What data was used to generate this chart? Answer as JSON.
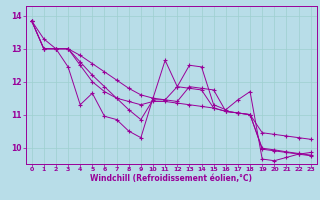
{
  "xlabel": "Windchill (Refroidissement éolien,°C)",
  "background_color": "#b8dde8",
  "line_color": "#990099",
  "grid_color": "#9ecfcf",
  "xlim": [
    -0.5,
    23.5
  ],
  "ylim": [
    9.5,
    14.3
  ],
  "yticks": [
    10,
    11,
    12,
    13,
    14
  ],
  "xticks": [
    0,
    1,
    2,
    3,
    4,
    5,
    6,
    7,
    8,
    9,
    10,
    11,
    12,
    13,
    14,
    15,
    16,
    17,
    18,
    19,
    20,
    21,
    22,
    23
  ],
  "series": [
    [
      13.85,
      13.3,
      13.0,
      12.45,
      11.3,
      11.65,
      10.95,
      10.85,
      10.5,
      10.3,
      11.5,
      12.65,
      11.85,
      12.5,
      12.45,
      11.3,
      11.15,
      11.45,
      11.7,
      9.65,
      9.6,
      9.7,
      9.8,
      9.85
    ],
    [
      13.85,
      13.0,
      13.0,
      13.0,
      12.8,
      12.55,
      12.3,
      12.05,
      11.8,
      11.6,
      11.5,
      11.45,
      11.85,
      11.8,
      11.75,
      11.2,
      11.1,
      11.05,
      11.0,
      9.95,
      9.9,
      9.85,
      9.8,
      9.75
    ],
    [
      13.85,
      13.0,
      13.0,
      13.0,
      12.6,
      12.2,
      11.85,
      11.5,
      11.15,
      10.85,
      11.45,
      11.45,
      11.4,
      11.85,
      11.8,
      11.75,
      11.1,
      11.05,
      11.0,
      9.98,
      9.93,
      9.87,
      9.82,
      9.77
    ],
    [
      13.85,
      13.0,
      13.0,
      13.0,
      12.5,
      12.0,
      11.7,
      11.5,
      11.4,
      11.3,
      11.4,
      11.4,
      11.35,
      11.3,
      11.25,
      11.2,
      11.1,
      11.05,
      11.0,
      10.45,
      10.4,
      10.35,
      10.3,
      10.25
    ]
  ]
}
